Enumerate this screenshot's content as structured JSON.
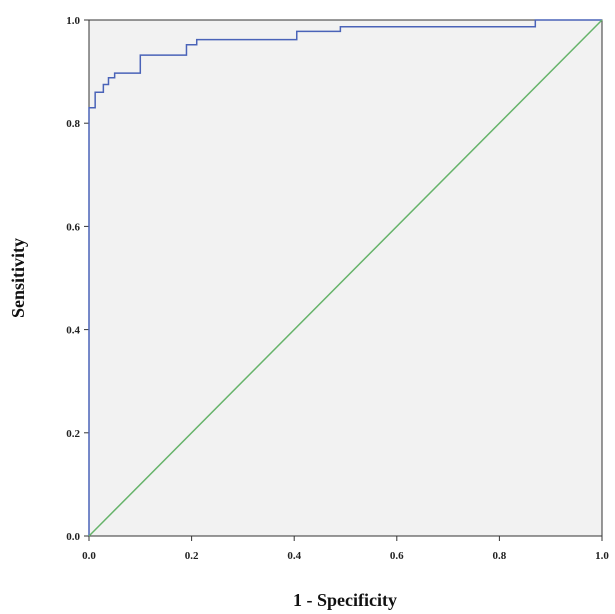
{
  "chart_data": {
    "type": "line",
    "title": "",
    "xlabel": "1 - Specificity",
    "ylabel": "Sensitivity",
    "xlim": [
      0,
      1
    ],
    "ylim": [
      0,
      1
    ],
    "x_ticks": [
      "0.0",
      "0.2",
      "0.4",
      "0.6",
      "0.8",
      "1.0"
    ],
    "y_ticks": [
      "0.0",
      "0.2",
      "0.4",
      "0.6",
      "0.8",
      "1.0"
    ],
    "grid": false,
    "series": [
      {
        "color": "#4a63b8",
        "style": "step",
        "points": [
          [
            0.0,
            0.0
          ],
          [
            0.0,
            0.83
          ],
          [
            0.012,
            0.83
          ],
          [
            0.012,
            0.86
          ],
          [
            0.028,
            0.86
          ],
          [
            0.028,
            0.875
          ],
          [
            0.038,
            0.875
          ],
          [
            0.038,
            0.888
          ],
          [
            0.05,
            0.888
          ],
          [
            0.05,
            0.897
          ],
          [
            0.1,
            0.897
          ],
          [
            0.1,
            0.932
          ],
          [
            0.19,
            0.932
          ],
          [
            0.19,
            0.952
          ],
          [
            0.21,
            0.952
          ],
          [
            0.21,
            0.962
          ],
          [
            0.405,
            0.962
          ],
          [
            0.405,
            0.978
          ],
          [
            0.49,
            0.978
          ],
          [
            0.49,
            0.987
          ],
          [
            0.87,
            0.987
          ],
          [
            0.87,
            1.0
          ],
          [
            1.0,
            1.0
          ]
        ]
      },
      {
        "color": "#66b36a",
        "style": "line",
        "points": [
          [
            0.0,
            0.0
          ],
          [
            1.0,
            1.0
          ]
        ]
      }
    ]
  }
}
